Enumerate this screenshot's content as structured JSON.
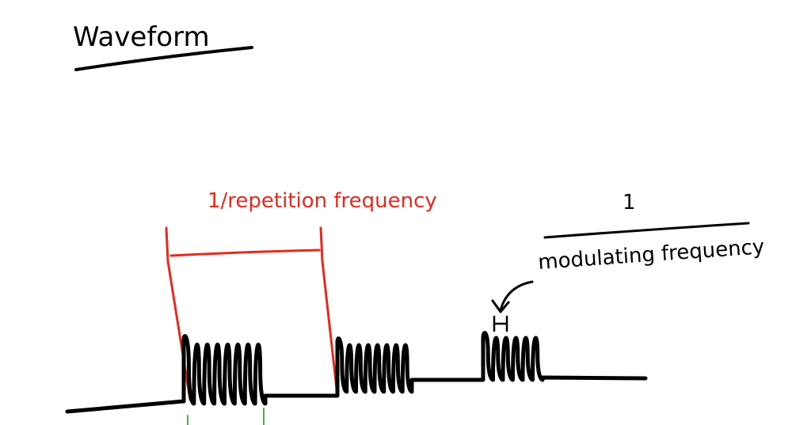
{
  "title": "Waveform",
  "labels": {
    "repetition_period": "1/repetition frequency",
    "modulating_numerator": "1",
    "modulating_denominator": "modulating frequency"
  }
}
